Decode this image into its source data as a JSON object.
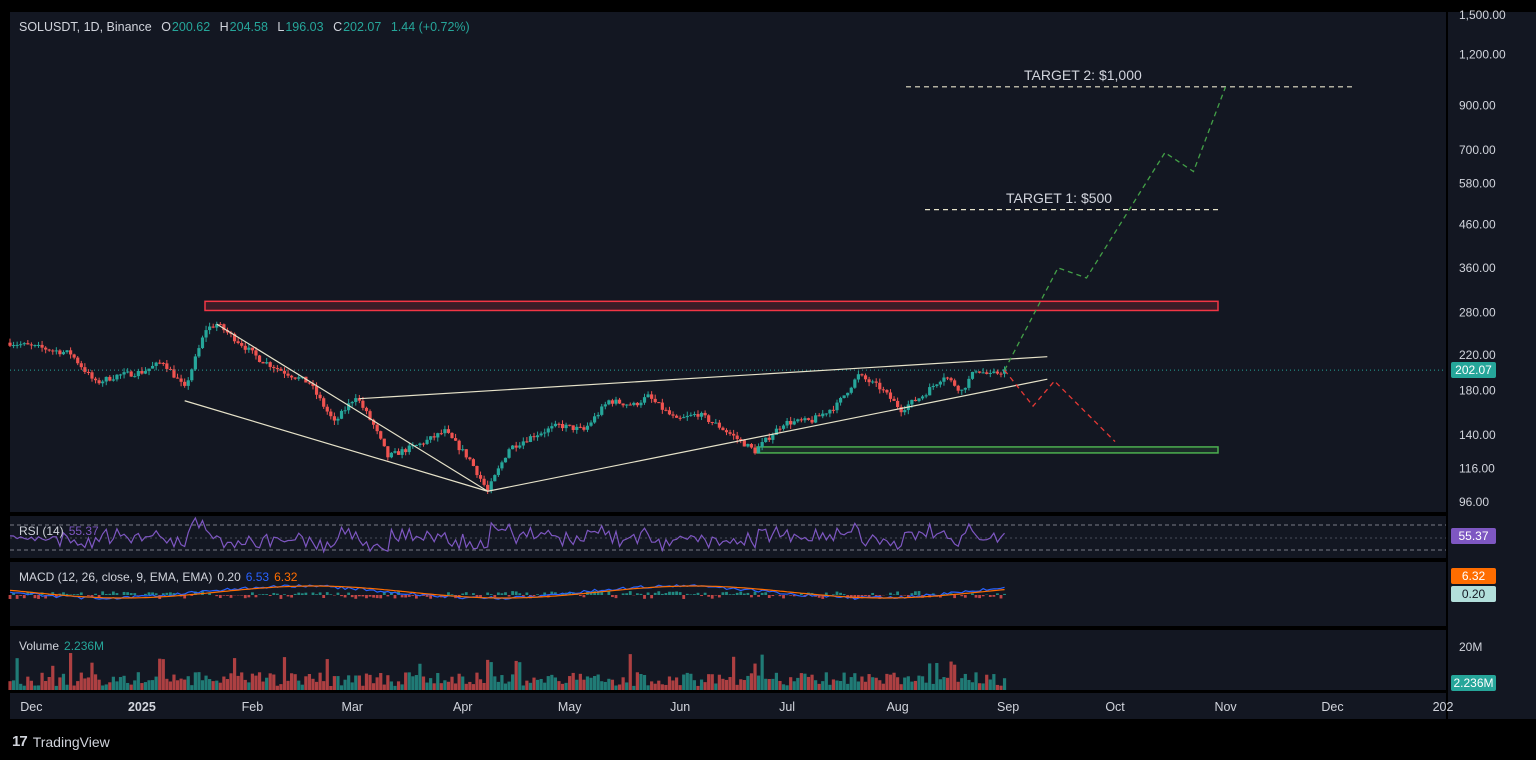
{
  "header": {
    "symbol_label": "SOLUSDT, 1D, Binance",
    "open_key": "O",
    "open_value": "200.62",
    "high_key": "H",
    "high_value": "204.58",
    "low_key": "L",
    "low_value": "196.03",
    "close_key": "C",
    "close_value": "202.07",
    "change": "1.44 (+0.72%)"
  },
  "annotations": {
    "target2": "TARGET 2: $1,000",
    "target1": "TARGET 1: $500"
  },
  "badges": {
    "price": "202.07",
    "rsi": "55.37",
    "macd_signal": "6.32",
    "macd_hist": "0.20",
    "volume": "2.236M"
  },
  "panes": {
    "rsi": {
      "name": "RSI (14)",
      "value": "55.37"
    },
    "macd": {
      "name": "MACD (12, 26, close, 9, EMA, EMA)",
      "hist": "0.20",
      "macd": "6.53",
      "signal": "6.32"
    },
    "volume": {
      "name": "Volume",
      "value": "2.236M"
    }
  },
  "brand": {
    "name": "TradingView"
  },
  "colors": {
    "background": "#131722",
    "up": "#26a69a",
    "down": "#ef5350",
    "text": "#d1d4dc",
    "rsi": "#7e57c2",
    "macd": "#2962ff",
    "signal": "#ff6d00",
    "resistance": "#f23645",
    "support": "#4caf50"
  },
  "chart_data": {
    "type": "candlestick",
    "scale": "log",
    "y_ticks": [
      "1,500.00",
      "1,200.00",
      "900.00",
      "700.00",
      "580.00",
      "460.00",
      "360.00",
      "280.00",
      "220.00",
      "180.00",
      "140.00",
      "116.00",
      "96.00"
    ],
    "y_tick_values": [
      1500,
      1200,
      900,
      700,
      580,
      460,
      360,
      280,
      220,
      180,
      140,
      116,
      96
    ],
    "x_ticks": [
      "Dec",
      "2025",
      "Feb",
      "Mar",
      "Apr",
      "May",
      "Jun",
      "Jul",
      "Aug",
      "Sep",
      "Oct",
      "Nov",
      "Dec",
      "202"
    ],
    "x_tick_dates": [
      "2024-12-01",
      "2025-01-01",
      "2025-02-01",
      "2025-03-01",
      "2025-04-01",
      "2025-05-01",
      "2025-06-01",
      "2025-07-01",
      "2025-08-01",
      "2025-09-01",
      "2025-10-01",
      "2025-11-01",
      "2025-12-01",
      "2026-01-01"
    ],
    "ylim": [
      88,
      1650
    ],
    "last_price": 202.07,
    "price_path": [
      [
        "2024-11-25",
        236
      ],
      [
        "2024-12-05",
        228
      ],
      [
        "2024-12-12",
        222
      ],
      [
        "2024-12-19",
        188
      ],
      [
        "2024-12-25",
        196
      ],
      [
        "2025-01-01",
        200
      ],
      [
        "2025-01-07",
        212
      ],
      [
        "2025-01-13",
        182
      ],
      [
        "2025-01-19",
        255
      ],
      [
        "2025-01-22",
        262
      ],
      [
        "2025-01-28",
        238
      ],
      [
        "2025-02-03",
        215
      ],
      [
        "2025-02-10",
        200
      ],
      [
        "2025-02-17",
        188
      ],
      [
        "2025-02-24",
        150
      ],
      [
        "2025-03-02",
        175
      ],
      [
        "2025-03-07",
        148
      ],
      [
        "2025-03-11",
        124
      ],
      [
        "2025-03-20",
        133
      ],
      [
        "2025-03-27",
        143
      ],
      [
        "2025-04-03",
        122
      ],
      [
        "2025-04-08",
        102
      ],
      [
        "2025-04-14",
        130
      ],
      [
        "2025-04-21",
        140
      ],
      [
        "2025-04-28",
        148
      ],
      [
        "2025-05-05",
        144
      ],
      [
        "2025-05-12",
        170
      ],
      [
        "2025-05-19",
        166
      ],
      [
        "2025-05-23",
        174
      ],
      [
        "2025-05-31",
        152
      ],
      [
        "2025-06-06",
        158
      ],
      [
        "2025-06-12",
        147
      ],
      [
        "2025-06-22",
        128
      ],
      [
        "2025-06-30",
        150
      ],
      [
        "2025-07-08",
        152
      ],
      [
        "2025-07-15",
        166
      ],
      [
        "2025-07-21",
        196
      ],
      [
        "2025-07-27",
        183
      ],
      [
        "2025-08-02",
        162
      ],
      [
        "2025-08-08",
        175
      ],
      [
        "2025-08-14",
        196
      ],
      [
        "2025-08-19",
        180
      ],
      [
        "2025-08-23",
        203
      ],
      [
        "2025-08-27",
        196
      ],
      [
        "2025-08-31",
        202
      ]
    ],
    "rsi": {
      "name": "RSI (14)",
      "last": 55.37
    },
    "macd": {
      "name": "MACD (12, 26, close, 9, EMA, EMA)",
      "hist": 0.2,
      "macd": 6.53,
      "signal": 6.32
    },
    "volume": {
      "name": "Volume",
      "last": "2.236M",
      "y_tick": "20M"
    },
    "resistance_zone": [
      283,
      298
    ],
    "support_zone": [
      127,
      131
    ],
    "target_1": 500,
    "target_2": 1000,
    "falling_wedge": {
      "upper": [
        [
          "2025-01-22",
          262
        ],
        [
          "2025-04-08",
          102
        ]
      ],
      "lower": [
        [
          "2025-01-13",
          170
        ],
        [
          "2025-04-08",
          102
        ]
      ]
    },
    "ascending_triangle": {
      "upper": [
        [
          "2025-03-03",
          172
        ],
        [
          "2025-09-12",
          218
        ]
      ],
      "lower": [
        [
          "2025-04-08",
          102
        ],
        [
          "2025-09-12",
          192
        ]
      ]
    },
    "bullish_projection": [
      [
        "2025-08-31",
        202
      ],
      [
        "2025-09-15",
        360
      ],
      [
        "2025-09-23",
        340
      ],
      [
        "2025-10-15",
        690
      ],
      [
        "2025-10-23",
        620
      ],
      [
        "2025-11-01",
        1000
      ]
    ],
    "bearish_projection": [
      [
        "2025-08-31",
        202
      ],
      [
        "2025-09-08",
        165
      ],
      [
        "2025-09-14",
        190
      ],
      [
        "2025-10-01",
        135
      ]
    ]
  }
}
